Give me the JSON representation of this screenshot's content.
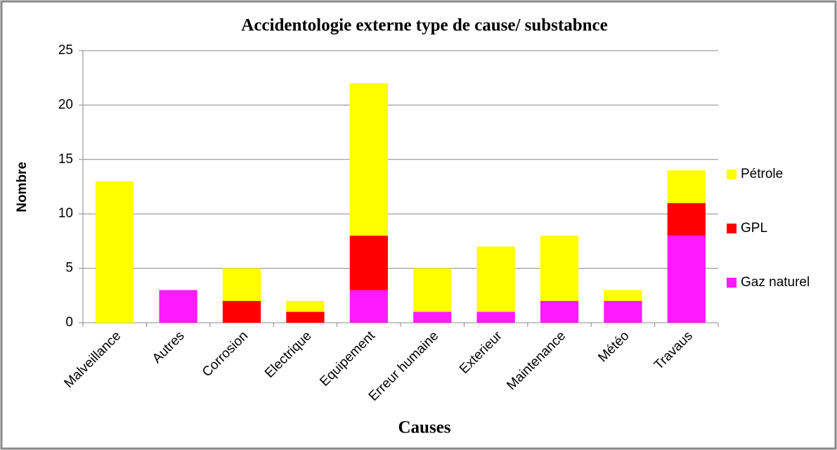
{
  "chart_data": {
    "type": "stacked_bar",
    "title": "Accidentologie externe type de cause/ substabnce",
    "x_label": "Causes",
    "y_label": "Nombre",
    "categories": [
      "Malveillance",
      "Autres",
      "Corrosion",
      "Electrique",
      "Equipement",
      "Erreur humaine",
      "Exterieur",
      "Maintenance",
      "Météo",
      "Travaus"
    ],
    "series": [
      {
        "name": "Gaz naturel",
        "color": "#ff1aff",
        "values": [
          0,
          3,
          0,
          0,
          3,
          1,
          1,
          2,
          2,
          8
        ]
      },
      {
        "name": "GPL",
        "color": "#ff0000",
        "values": [
          0,
          0,
          2,
          1,
          5,
          0,
          0,
          0,
          0,
          3
        ]
      },
      {
        "name": "Pétrole",
        "color": "#ffff00",
        "values": [
          13,
          0,
          3,
          1,
          14,
          4,
          6,
          6,
          1,
          3
        ]
      }
    ],
    "ylim": [
      0,
      25
    ],
    "yticks": [
      0,
      5,
      10,
      15,
      20,
      25
    ],
    "grid": true,
    "legend": "right"
  }
}
